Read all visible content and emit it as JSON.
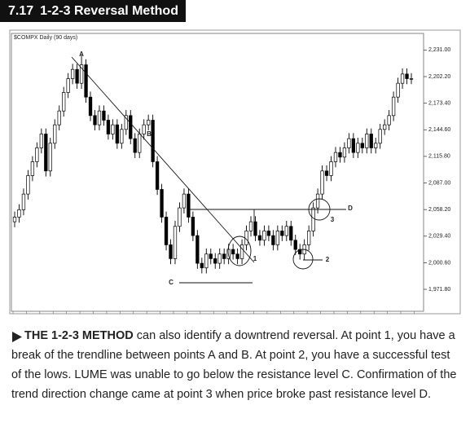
{
  "figure": {
    "label": "7.17",
    "title": "1-2-3 Reversal Method"
  },
  "caption": {
    "lead": "THE 1-2-3 METHOD",
    "text": "can also identify a downtrend reversal. At point 1, you have a break of the trendline between points A and B. At point 2, you have a successful test of the lows. LUME was unable to go below the resistance level C. Confirmation of the trend direction change came at point 3 when price broke past resistance level D."
  },
  "chart_data": {
    "type": "candlestick",
    "title": "$COMPX   Daily (90 days)",
    "annotations": [
      "A",
      "B",
      "C",
      "D",
      "1",
      "2",
      "3"
    ],
    "up_color": "#ffffff",
    "down_color": "#000000",
    "edge_color": "#000000",
    "ylim": [
      1948,
      2249
    ],
    "yticks": [
      {
        "value": 2231,
        "label": "2,231.00"
      },
      {
        "value": 2202.2,
        "label": "2,202.20"
      },
      {
        "value": 2173.4,
        "label": "2,173.40"
      },
      {
        "value": 2144.6,
        "label": "2,144.60"
      },
      {
        "value": 2115.8,
        "label": "2,115.80"
      },
      {
        "value": 2087,
        "label": "2,087.00"
      },
      {
        "value": 2058.2,
        "label": "2,058.20"
      },
      {
        "value": 2029.4,
        "label": "2,029.40"
      },
      {
        "value": 2000.6,
        "label": "2,000.60"
      },
      {
        "value": 1971.8,
        "label": "1,971.80"
      }
    ],
    "open": [
      2045,
      2050,
      2058,
      2075,
      2095,
      2110,
      2125,
      2140,
      2100,
      2130,
      2150,
      2165,
      2185,
      2200,
      2210,
      2195,
      2215,
      2180,
      2160,
      2150,
      2165,
      2155,
      2140,
      2150,
      2130,
      2145,
      2160,
      2135,
      2120,
      2140,
      2150,
      2155,
      2110,
      2080,
      2050,
      2020,
      2005,
      2040,
      2060,
      2075,
      2050,
      2030,
      2000,
      1995,
      2010,
      2005,
      2000,
      2010,
      2005,
      2015,
      2010,
      2005,
      2020,
      2035,
      2045,
      2030,
      2025,
      2035,
      2030,
      2020,
      2035,
      2030,
      2040,
      2025,
      2015,
      2010,
      2020,
      2035,
      2060,
      2075,
      2100,
      2095,
      2110,
      2120,
      2115,
      2125,
      2135,
      2120,
      2130,
      2125,
      2140,
      2125,
      2130,
      2145,
      2150,
      2160,
      2180,
      2195,
      2205,
      2200
    ],
    "high": [
      2056,
      2064,
      2081,
      2101,
      2116,
      2131,
      2146,
      2146,
      2136,
      2156,
      2171,
      2191,
      2206,
      2216,
      2216,
      2226,
      2221,
      2186,
      2166,
      2171,
      2171,
      2161,
      2156,
      2156,
      2151,
      2166,
      2166,
      2141,
      2146,
      2156,
      2161,
      2161,
      2116,
      2086,
      2056,
      2026,
      2046,
      2066,
      2081,
      2081,
      2056,
      2036,
      2006,
      2016,
      2016,
      2011,
      2016,
      2016,
      2021,
      2021,
      2016,
      2026,
      2041,
      2051,
      2051,
      2036,
      2041,
      2041,
      2036,
      2041,
      2041,
      2046,
      2046,
      2031,
      2021,
      2026,
      2041,
      2066,
      2081,
      2106,
      2106,
      2116,
      2126,
      2126,
      2131,
      2141,
      2141,
      2136,
      2136,
      2146,
      2146,
      2136,
      2151,
      2156,
      2166,
      2186,
      2201,
      2211,
      2211,
      2206
    ],
    "low": [
      2039,
      2044,
      2052,
      2069,
      2089,
      2104,
      2119,
      2094,
      2094,
      2124,
      2144,
      2159,
      2179,
      2194,
      2189,
      2189,
      2174,
      2154,
      2144,
      2144,
      2149,
      2134,
      2134,
      2124,
      2124,
      2139,
      2129,
      2114,
      2114,
      2134,
      2144,
      2104,
      2074,
      2044,
      2014,
      1999,
      1999,
      2034,
      2054,
      2044,
      2024,
      1994,
      1989,
      1989,
      1999,
      1994,
      1994,
      1999,
      1999,
      2004,
      1999,
      1999,
      2014,
      2029,
      2024,
      2019,
      2019,
      2024,
      2014,
      2014,
      2024,
      2024,
      2019,
      2009,
      2004,
      2004,
      2014,
      2029,
      2054,
      2069,
      2089,
      2089,
      2104,
      2109,
      2109,
      2119,
      2114,
      2114,
      2119,
      2119,
      2119,
      2119,
      2124,
      2139,
      2144,
      2154,
      2174,
      2189,
      2194,
      2194
    ],
    "close": [
      2050,
      2058,
      2075,
      2095,
      2110,
      2125,
      2140,
      2100,
      2130,
      2150,
      2165,
      2185,
      2200,
      2210,
      2195,
      2215,
      2180,
      2160,
      2150,
      2165,
      2155,
      2140,
      2150,
      2130,
      2145,
      2160,
      2135,
      2120,
      2140,
      2150,
      2155,
      2110,
      2080,
      2050,
      2020,
      2005,
      2040,
      2060,
      2075,
      2050,
      2030,
      2000,
      1995,
      2010,
      2005,
      2000,
      2010,
      2005,
      2015,
      2010,
      2005,
      2020,
      2035,
      2045,
      2030,
      2025,
      2035,
      2030,
      2020,
      2035,
      2030,
      2040,
      2025,
      2015,
      2010,
      2020,
      2035,
      2060,
      2075,
      2100,
      2095,
      2110,
      2120,
      2115,
      2125,
      2135,
      2120,
      2130,
      2125,
      2140,
      2125,
      2130,
      2145,
      2150,
      2160,
      2180,
      2195,
      2205,
      2200,
      2200
    ]
  }
}
